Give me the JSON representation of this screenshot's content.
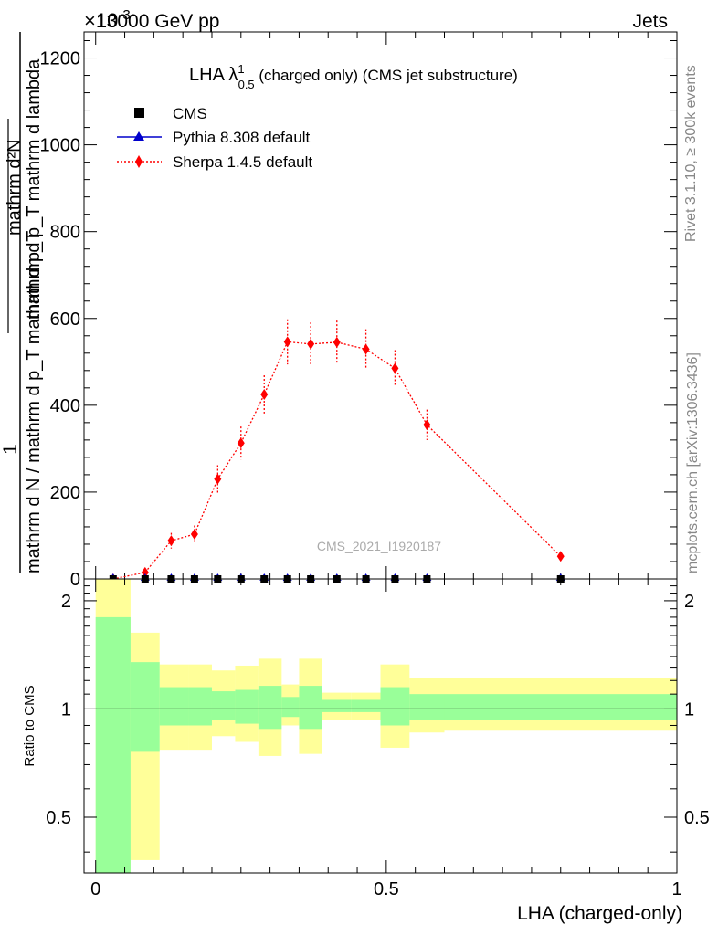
{
  "header": {
    "energy_label": "13000 GeV pp",
    "category_label": "Jets",
    "exponent_label": "×10",
    "exponent_power": "-3"
  },
  "plot_title": {
    "main": "LHA λ",
    "sup": "1",
    "sub": "0.5",
    "rest": " (charged only) (CMS jet substructure)"
  },
  "side_labels": {
    "rivet": "Rivet 3.1.10, ≥ 300k events",
    "mcplots": "mcplots.cern.ch [arXiv:1306.3436]"
  },
  "watermark": "CMS_2021_I1920187",
  "ylabel_main": {
    "one": "1",
    "denominator": "mathrm d N / mathrm d p_T mathrm d p_T",
    "numerator": "mathrm d²N",
    "numerator_rest": "mathrm d p_T mathrm d lambda"
  },
  "legend": {
    "entries": [
      {
        "label": "CMS",
        "color": "#000000",
        "marker": "square"
      },
      {
        "label": "Pythia 8.308 default",
        "color": "#0000cc",
        "marker": "triangle"
      },
      {
        "label": "Sherpa 1.4.5 default",
        "color": "#ff0000",
        "marker": "diamond"
      }
    ]
  },
  "ratio_panel": {
    "ylabel": "Ratio to CMS"
  },
  "xlabel": "LHA (charged-only)",
  "chart_data": [
    {
      "type": "scatter",
      "panel": "main",
      "xlim": [
        -0.02,
        1.0
      ],
      "ylim": [
        0,
        1260
      ],
      "y_scale_note": "×10^-3",
      "yticks": [
        0,
        200,
        400,
        600,
        800,
        1000,
        1200
      ],
      "xticks": [
        0,
        0.5,
        1
      ],
      "series": [
        {
          "name": "CMS",
          "color": "#000000",
          "marker": "square",
          "x": [
            0.03,
            0.085,
            0.13,
            0.17,
            0.21,
            0.25,
            0.29,
            0.33,
            0.37,
            0.415,
            0.465,
            0.515,
            0.57,
            0.8
          ],
          "y": [
            0,
            0,
            0,
            0,
            0,
            0,
            0,
            0,
            0,
            0,
            0,
            0,
            0,
            0
          ]
        },
        {
          "name": "Pythia 8.308 default",
          "color": "#0000cc",
          "marker": "triangle",
          "x": [
            0.03,
            0.085,
            0.13,
            0.17,
            0.21,
            0.25,
            0.29,
            0.33,
            0.37,
            0.415,
            0.465,
            0.515,
            0.57,
            0.8
          ],
          "y": [
            0,
            0,
            0,
            0,
            0,
            0,
            0,
            0,
            0,
            0,
            0,
            0,
            0,
            0
          ]
        },
        {
          "name": "Sherpa 1.4.5 default",
          "color": "#ff0000",
          "marker": "diamond",
          "line": "dotted",
          "x": [
            0.03,
            0.085,
            0.13,
            0.17,
            0.21,
            0.25,
            0.29,
            0.33,
            0.37,
            0.415,
            0.465,
            0.515,
            0.57,
            0.8
          ],
          "y": [
            0,
            15,
            88,
            103,
            230,
            313,
            425,
            546,
            541,
            545,
            529,
            485,
            355,
            52
          ],
          "yerr": [
            0,
            3,
            18,
            20,
            32,
            38,
            44,
            52,
            50,
            50,
            46,
            42,
            35,
            6
          ]
        }
      ]
    },
    {
      "type": "area",
      "panel": "ratio",
      "xlim": [
        -0.02,
        1.0
      ],
      "ylim": [
        0.35,
        2.3
      ],
      "y_scale": "log",
      "yticks": [
        0.5,
        1,
        2
      ],
      "xticks": [
        0,
        0.5,
        1
      ],
      "bins": [
        0,
        0.06,
        0.11,
        0.16,
        0.2,
        0.24,
        0.28,
        0.32,
        0.35,
        0.39,
        0.44,
        0.49,
        0.54,
        0.6,
        1.0
      ],
      "stat_band": {
        "color": "#99ff99",
        "lo": [
          0.3,
          0.76,
          0.9,
          0.9,
          0.93,
          0.91,
          0.88,
          0.95,
          0.88,
          0.98,
          0.98,
          0.9,
          0.93,
          0.93
        ],
        "hi": [
          1.8,
          1.35,
          1.15,
          1.15,
          1.12,
          1.13,
          1.16,
          1.08,
          1.16,
          1.06,
          1.06,
          1.15,
          1.1,
          1.1
        ]
      },
      "total_band": {
        "color": "#ffff99",
        "lo": [
          0.3,
          0.38,
          0.77,
          0.77,
          0.84,
          0.81,
          0.74,
          0.9,
          0.75,
          0.93,
          0.93,
          0.78,
          0.86,
          0.87
        ],
        "hi": [
          2.4,
          1.63,
          1.33,
          1.33,
          1.28,
          1.32,
          1.38,
          1.17,
          1.38,
          1.11,
          1.11,
          1.33,
          1.22,
          1.22
        ]
      },
      "reference_line": 1
    }
  ]
}
